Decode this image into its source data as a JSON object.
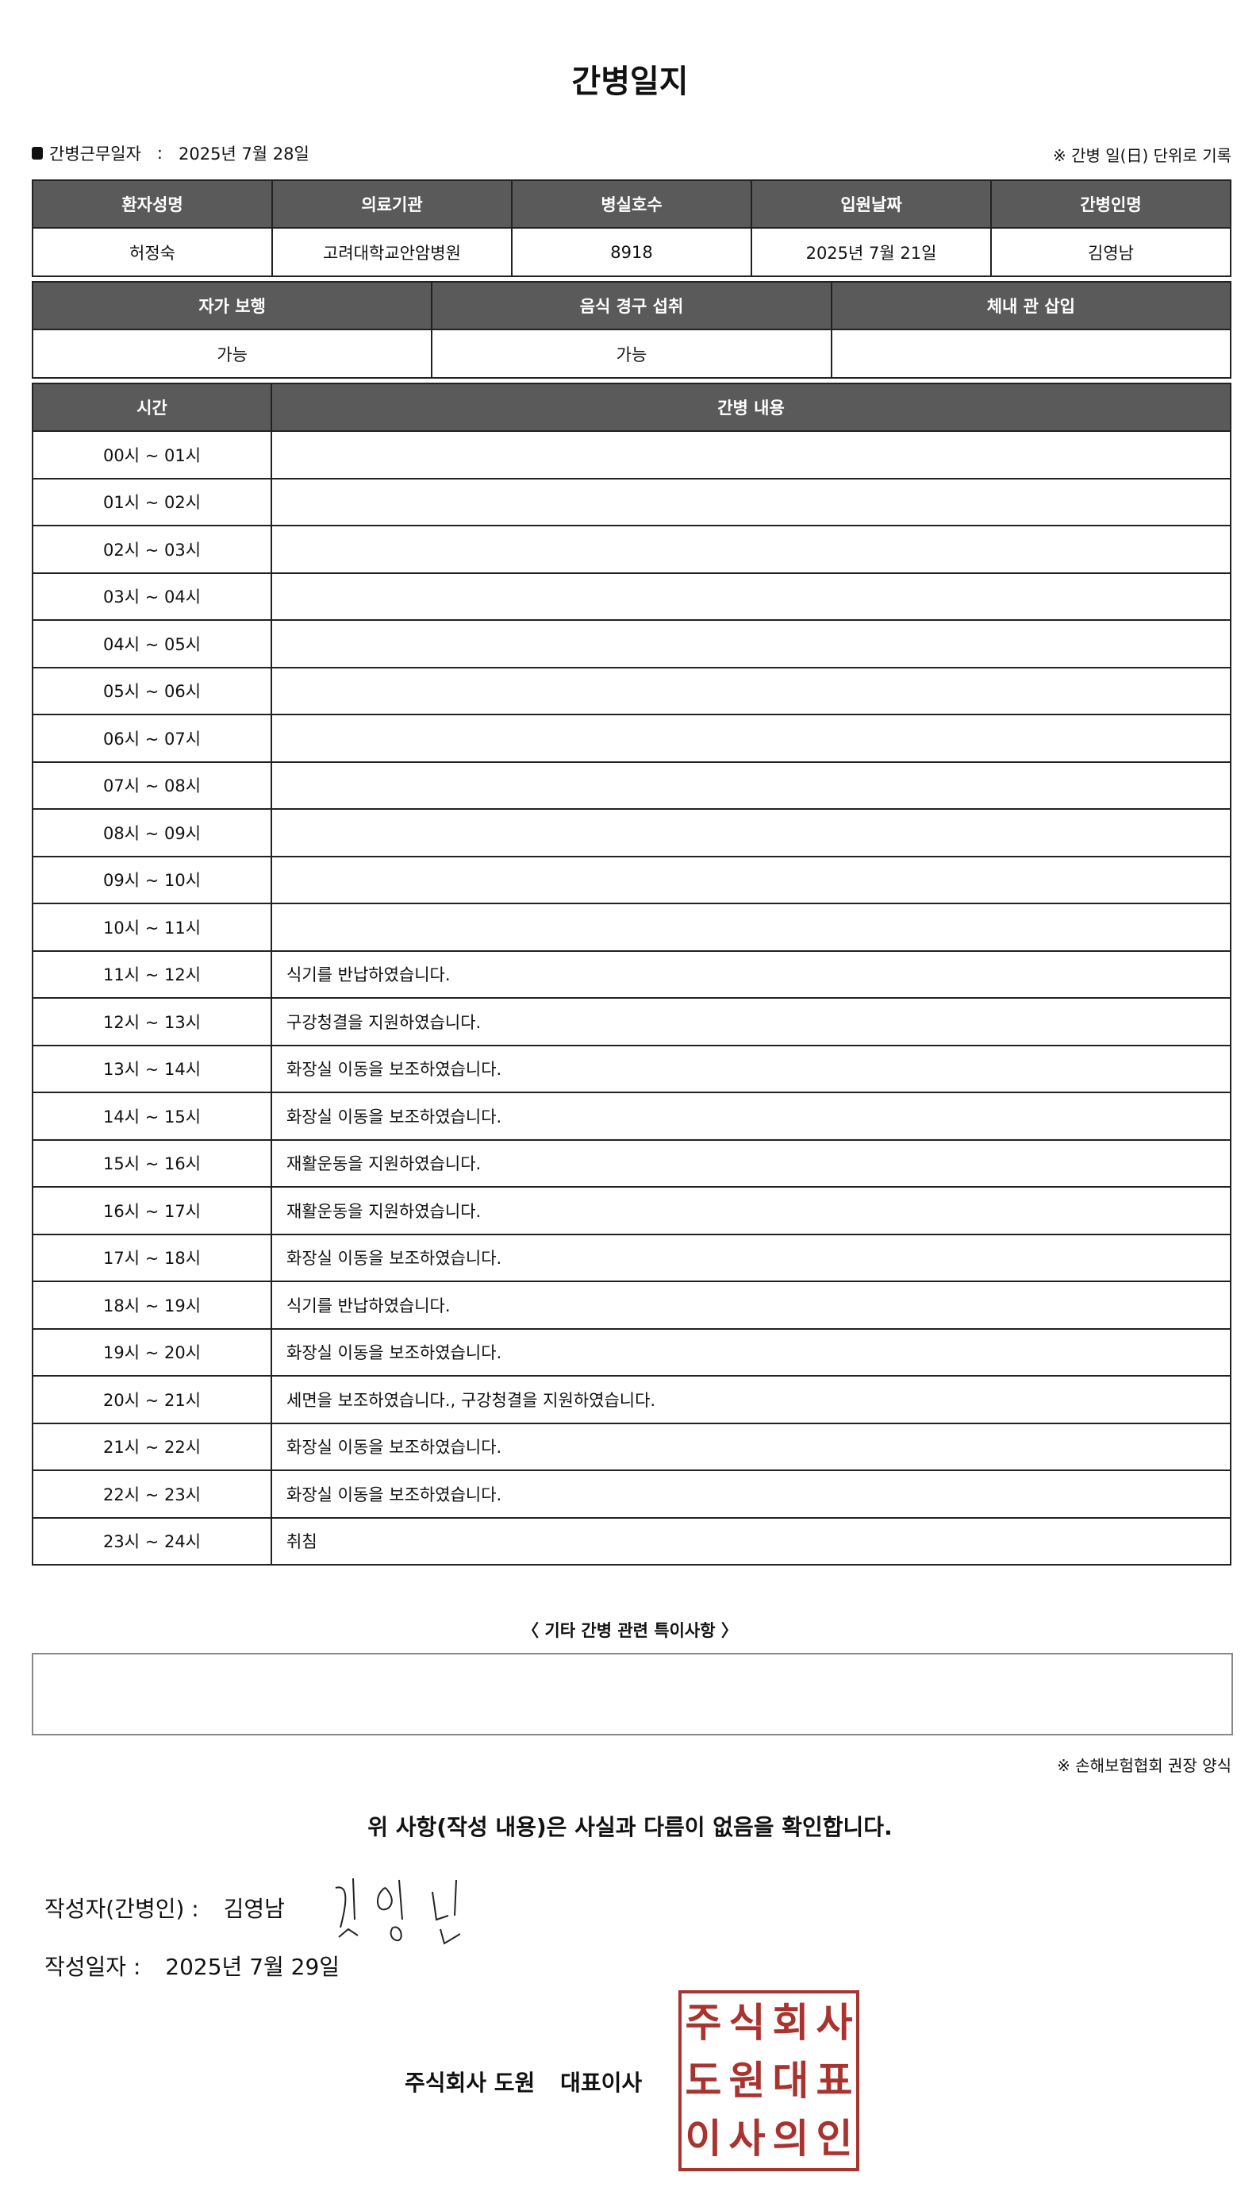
{
  "title": "간병일지",
  "work_date": {
    "label": "간병근무일자",
    "separator": ":",
    "value": "2025년 7월 28일"
  },
  "record_note": "※ 간병 일(日) 단위로 기록",
  "patient_table": {
    "headers": [
      "환자성명",
      "의료기관",
      "병실호수",
      "입원날짜",
      "간병인명"
    ],
    "values": [
      "허정숙",
      "고려대학교안암병원",
      "8918",
      "2025년 7월 21일",
      "김영남"
    ]
  },
  "status_table": {
    "headers": [
      "자가 보행",
      "음식 경구 섭취",
      "체내 관 삽입"
    ],
    "values": [
      "가능",
      "가능",
      ""
    ]
  },
  "log_table": {
    "headers": [
      "시간",
      "간병 내용"
    ],
    "rows": [
      {
        "time": "00시 ~ 01시",
        "content": ""
      },
      {
        "time": "01시 ~ 02시",
        "content": ""
      },
      {
        "time": "02시 ~ 03시",
        "content": ""
      },
      {
        "time": "03시 ~ 04시",
        "content": ""
      },
      {
        "time": "04시 ~ 05시",
        "content": ""
      },
      {
        "time": "05시 ~ 06시",
        "content": ""
      },
      {
        "time": "06시 ~ 07시",
        "content": ""
      },
      {
        "time": "07시 ~ 08시",
        "content": ""
      },
      {
        "time": "08시 ~ 09시",
        "content": ""
      },
      {
        "time": "09시 ~ 10시",
        "content": ""
      },
      {
        "time": "10시 ~ 11시",
        "content": ""
      },
      {
        "time": "11시 ~ 12시",
        "content": "식기를 반납하였습니다."
      },
      {
        "time": "12시 ~ 13시",
        "content": "구강청결을 지원하였습니다."
      },
      {
        "time": "13시 ~ 14시",
        "content": "화장실 이동을 보조하였습니다."
      },
      {
        "time": "14시 ~ 15시",
        "content": "화장실 이동을 보조하였습니다."
      },
      {
        "time": "15시 ~ 16시",
        "content": "재활운동을 지원하였습니다."
      },
      {
        "time": "16시 ~ 17시",
        "content": "재활운동을 지원하였습니다."
      },
      {
        "time": "17시 ~ 18시",
        "content": "화장실 이동을 보조하였습니다."
      },
      {
        "time": "18시 ~ 19시",
        "content": "식기를 반납하였습니다."
      },
      {
        "time": "19시 ~ 20시",
        "content": "화장실 이동을 보조하였습니다."
      },
      {
        "time": "20시 ~ 21시",
        "content": "세면을 보조하였습니다., 구강청결을 지원하였습니다."
      },
      {
        "time": "21시 ~ 22시",
        "content": "화장실 이동을 보조하였습니다."
      },
      {
        "time": "22시 ~ 23시",
        "content": "화장실 이동을 보조하였습니다."
      },
      {
        "time": "23시 ~ 24시",
        "content": "취침"
      }
    ]
  },
  "special_notes": {
    "label": "〈 기타 간병 관련 특이사항 〉",
    "value": ""
  },
  "association_note": "※ 손해보험협회 권장 양식",
  "confirmation": "위 사항(작성 내용)은 사실과 다름이 없음을 확인합니다.",
  "writer": {
    "label": "작성자(간병인) :",
    "name": "김영남",
    "signature": "김영남"
  },
  "written_date": {
    "label": "작성일자 :",
    "value": "2025년 7월 29일"
  },
  "company": {
    "name": "주식회사 도원",
    "title": "대표이사",
    "stamp_text": "주식회사도원대표이사의인"
  },
  "colors": {
    "header_bg": "#5a5a5a",
    "stamp": "#a8332f",
    "watermark_blue": "#5b9bd5",
    "watermark_green": "#c9dc7a"
  }
}
